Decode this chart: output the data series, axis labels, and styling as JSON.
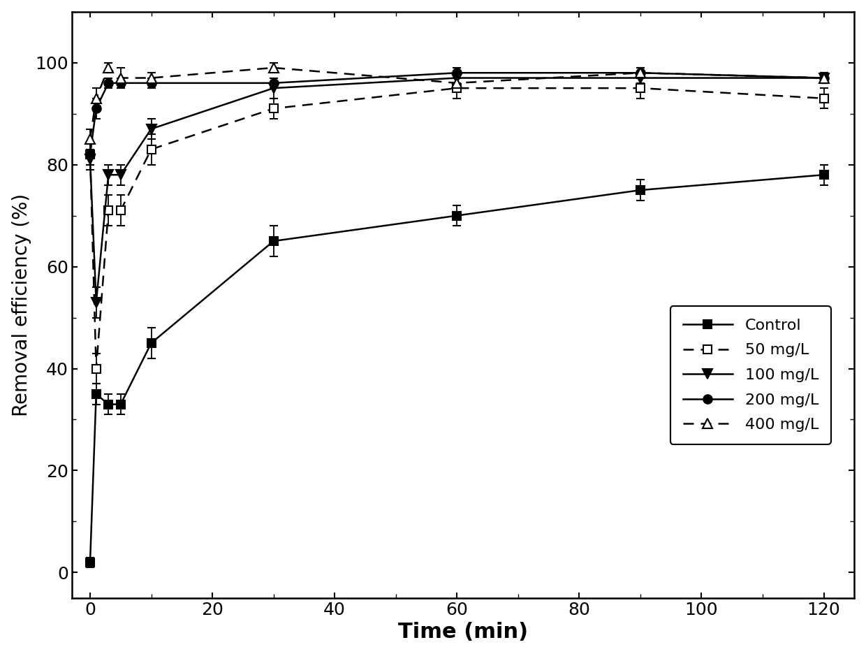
{
  "title": "",
  "xlabel": "Time (min)",
  "ylabel": "Removal efficiency (%)",
  "xlim": [
    -3,
    125
  ],
  "ylim": [
    -5,
    110
  ],
  "xticks": [
    0,
    20,
    40,
    60,
    80,
    100,
    120
  ],
  "yticks": [
    0,
    20,
    40,
    60,
    80,
    100
  ],
  "series": [
    {
      "label": "Control",
      "x": [
        0,
        1,
        3,
        5,
        10,
        30,
        60,
        90,
        120
      ],
      "y": [
        2,
        35,
        33,
        33,
        45,
        65,
        70,
        75,
        78
      ],
      "yerr": [
        1,
        2,
        2,
        2,
        3,
        3,
        2,
        2,
        2
      ],
      "color": "#000000",
      "linestyle": "-",
      "marker": "s",
      "markerfacecolor": "#000000",
      "markersize": 9,
      "linewidth": 1.8,
      "dashes": null
    },
    {
      "label": "50 mg/L",
      "x": [
        0,
        1,
        3,
        5,
        10,
        30,
        60,
        90,
        120
      ],
      "y": [
        82,
        40,
        71,
        71,
        83,
        91,
        95,
        95,
        93
      ],
      "yerr": [
        2,
        3,
        3,
        3,
        3,
        2,
        2,
        2,
        2
      ],
      "color": "#000000",
      "linestyle": "--",
      "marker": "s",
      "markerfacecolor": "#ffffff",
      "markersize": 9,
      "linewidth": 1.8,
      "dashes": [
        6,
        4
      ]
    },
    {
      "label": "100 mg/L",
      "x": [
        0,
        1,
        3,
        5,
        10,
        30,
        60,
        90,
        120
      ],
      "y": [
        81,
        53,
        78,
        78,
        87,
        95,
        97,
        97,
        97
      ],
      "yerr": [
        2,
        3,
        2,
        2,
        2,
        2,
        1,
        1,
        1
      ],
      "color": "#000000",
      "linestyle": "-",
      "marker": "v",
      "markerfacecolor": "#000000",
      "markersize": 10,
      "linewidth": 1.8,
      "dashes": null
    },
    {
      "label": "200 mg/L",
      "x": [
        0,
        1,
        3,
        5,
        10,
        30,
        60,
        90,
        120
      ],
      "y": [
        82,
        91,
        96,
        96,
        96,
        96,
        98,
        98,
        97
      ],
      "yerr": [
        2,
        2,
        1,
        1,
        1,
        1,
        1,
        1,
        1
      ],
      "color": "#000000",
      "linestyle": "-",
      "marker": "o",
      "markerfacecolor": "#000000",
      "markersize": 9,
      "linewidth": 1.8,
      "dashes": null
    },
    {
      "label": "400 mg/L",
      "x": [
        0,
        1,
        3,
        5,
        10,
        30,
        60,
        90,
        120
      ],
      "y": [
        85,
        93,
        99,
        97,
        97,
        99,
        96,
        98,
        97
      ],
      "yerr": [
        2,
        2,
        1,
        2,
        1,
        1,
        1,
        1,
        1
      ],
      "color": "#000000",
      "linestyle": "--",
      "marker": "^",
      "markerfacecolor": "#ffffff",
      "markersize": 10,
      "linewidth": 1.8,
      "dashes": [
        6,
        4
      ]
    }
  ],
  "background_color": "#ffffff",
  "xlabel_fontsize": 22,
  "ylabel_fontsize": 20,
  "tick_fontsize": 18,
  "legend_fontsize": 16
}
